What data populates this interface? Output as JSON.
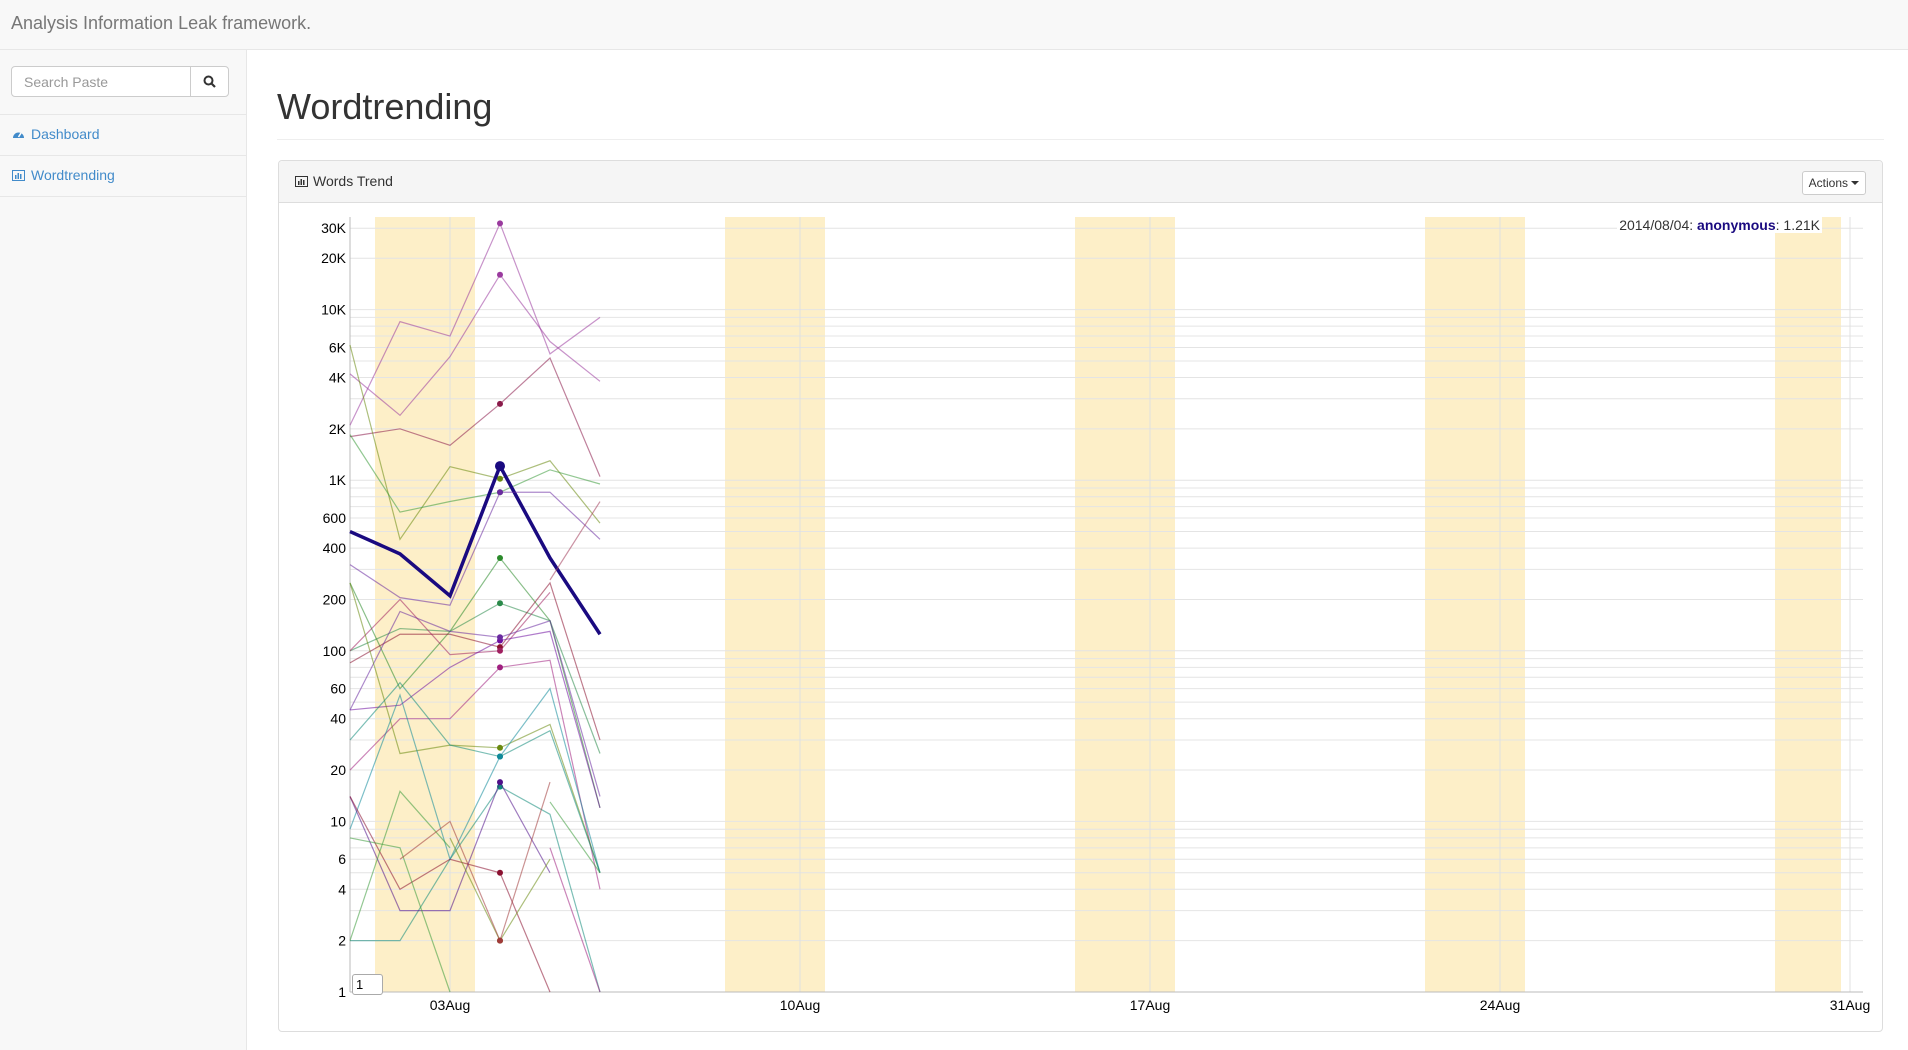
{
  "app": {
    "brand": "Analysis Information Leak framework."
  },
  "sidebar": {
    "search_placeholder": "Search Paste",
    "items": [
      {
        "label": "Dashboard",
        "icon": "dashboard-icon"
      },
      {
        "label": "Wordtrending",
        "icon": "bar-chart-icon"
      }
    ]
  },
  "main": {
    "title": "Wordtrending",
    "panel_title": "Words Trend",
    "actions_label": "Actions",
    "roll_period": "1"
  },
  "legend": {
    "date": "2014/08/04",
    "series": "anonymous",
    "value": "1.21K",
    "color": "#1a0a80"
  },
  "chart_data": {
    "type": "line",
    "y_scale": "log",
    "ylim": [
      1,
      35000
    ],
    "xlim": [
      "2014-08-01",
      "2014-08-31"
    ],
    "grid": true,
    "weekend_shading": true,
    "weekend_color": "#fdefc8",
    "x_ticks": [
      "03Aug",
      "10Aug",
      "17Aug",
      "24Aug",
      "31Aug"
    ],
    "y_ticks": [
      "1",
      "2",
      "4",
      "6",
      "10",
      "20",
      "40",
      "60",
      "100",
      "200",
      "400",
      "600",
      "1K",
      "2K",
      "4K",
      "6K",
      "10K",
      "20K",
      "30K"
    ],
    "x": [
      "2014-08-01",
      "2014-08-02",
      "2014-08-03",
      "2014-08-04",
      "2014-08-05",
      "2014-08-06"
    ],
    "highlight_x": "2014-08-04",
    "series": [
      {
        "color": "#9a3a9e",
        "values": [
          2100,
          8500,
          7000,
          32000,
          5500,
          9000
        ]
      },
      {
        "color": "#9a3a9e",
        "values": [
          4200,
          2400,
          5300,
          16000,
          6500,
          3800
        ]
      },
      {
        "color": "#8a1a4a",
        "values": [
          1800,
          2000,
          1600,
          2800,
          5200,
          1050
        ]
      },
      {
        "color": "#6a8a10",
        "values": [
          6200,
          450,
          1200,
          1020,
          1300,
          560
        ]
      },
      {
        "color": "#3a9a3a",
        "values": [
          1850,
          650,
          750,
          850,
          1150,
          950
        ]
      },
      {
        "name": "anonymous",
        "color": "#1a0a80",
        "bold": true,
        "values": [
          500,
          370,
          210,
          1210,
          350,
          125
        ]
      },
      {
        "color": "#6a2aa0",
        "values": [
          320,
          205,
          185,
          850,
          850,
          450
        ]
      },
      {
        "color": "#a03a5a",
        "values": [
          null,
          null,
          null,
          null,
          260,
          750
        ]
      },
      {
        "color": "#2a8a2a",
        "values": [
          250,
          60,
          130,
          350,
          150,
          12
        ]
      },
      {
        "color": "#2a8a4a",
        "values": [
          100,
          135,
          130,
          190,
          150,
          25
        ]
      },
      {
        "color": "#8a1030",
        "values": [
          85,
          125,
          125,
          105,
          250,
          30
        ]
      },
      {
        "color": "#a02060",
        "values": [
          100,
          200,
          95,
          100,
          220,
          null
        ]
      },
      {
        "color": "#7010a0",
        "values": [
          45,
          48,
          80,
          115,
          130,
          12
        ]
      },
      {
        "color": "#6a2aa0",
        "values": [
          45,
          170,
          130,
          120,
          150,
          14
        ]
      },
      {
        "color": "#a02080",
        "values": [
          20,
          40,
          40,
          80,
          88,
          4
        ]
      },
      {
        "color": "#6a8a10",
        "values": [
          250,
          25,
          28,
          27,
          37,
          5
        ]
      },
      {
        "color": "#108a7a",
        "values": [
          30,
          65,
          28,
          24,
          34,
          5
        ]
      },
      {
        "color": "#108a7a",
        "values": [
          2,
          2,
          6,
          16,
          11,
          1
        ]
      },
      {
        "color": "#108a9a",
        "values": [
          9,
          55,
          6,
          24,
          60,
          5
        ]
      },
      {
        "color": "#50108a",
        "values": [
          14,
          3,
          3,
          17,
          5,
          null
        ]
      },
      {
        "color": "#8a1030",
        "values": [
          14,
          4,
          6,
          5,
          1,
          null
        ]
      },
      {
        "color": "#6a8a10",
        "values": [
          null,
          null,
          8,
          2,
          6,
          null
        ]
      },
      {
        "color": "#3a9a3a",
        "values": [
          8,
          7,
          1,
          null,
          13,
          5
        ]
      },
      {
        "color": "#3a9a3a",
        "values": [
          2,
          15,
          7,
          null,
          null,
          null
        ]
      },
      {
        "color": "#a03a3a",
        "values": [
          null,
          6,
          10,
          2,
          17,
          null
        ]
      },
      {
        "color": "#a02080",
        "values": [
          null,
          null,
          null,
          null,
          7,
          1
        ]
      }
    ]
  }
}
